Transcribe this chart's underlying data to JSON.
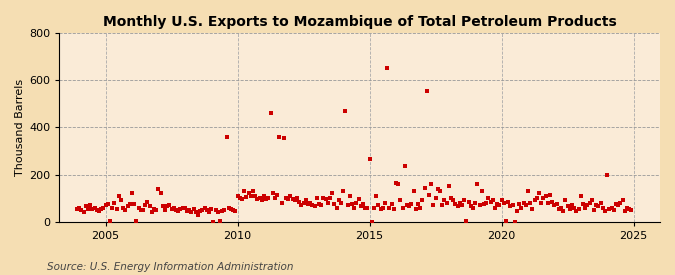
{
  "title": "Monthly U.S. Exports to Mozambique of Total Petroleum Products",
  "ylabel": "Thousand Barrels",
  "source": "Source: U.S. Energy Information Administration",
  "background_color": "#f5deb3",
  "plot_background_color": "#faebd7",
  "marker_color": "#cc0000",
  "grid_color_h": "#999999",
  "grid_color_v": "#aaaaaa",
  "xlim": [
    2003.25,
    2026.0
  ],
  "ylim": [
    0,
    800
  ],
  "yticks": [
    0,
    200,
    400,
    600,
    800
  ],
  "xticks": [
    2005,
    2010,
    2015,
    2020,
    2025
  ],
  "title_fontsize": 10,
  "ylabel_fontsize": 8,
  "tick_fontsize": 8,
  "source_fontsize": 7.5,
  "data": [
    [
      2003.917,
      55
    ],
    [
      2004.0,
      60
    ],
    [
      2004.083,
      50
    ],
    [
      2004.167,
      40
    ],
    [
      2004.25,
      65
    ],
    [
      2004.333,
      55
    ],
    [
      2004.417,
      70
    ],
    [
      2004.5,
      55
    ],
    [
      2004.583,
      60
    ],
    [
      2004.667,
      50
    ],
    [
      2004.75,
      45
    ],
    [
      2004.833,
      55
    ],
    [
      2004.917,
      60
    ],
    [
      2005.0,
      70
    ],
    [
      2005.083,
      75
    ],
    [
      2005.167,
      5
    ],
    [
      2005.25,
      60
    ],
    [
      2005.333,
      80
    ],
    [
      2005.417,
      55
    ],
    [
      2005.5,
      110
    ],
    [
      2005.583,
      90
    ],
    [
      2005.667,
      60
    ],
    [
      2005.75,
      50
    ],
    [
      2005.833,
      65
    ],
    [
      2005.917,
      75
    ],
    [
      2006.0,
      120
    ],
    [
      2006.083,
      75
    ],
    [
      2006.167,
      5
    ],
    [
      2006.25,
      60
    ],
    [
      2006.333,
      50
    ],
    [
      2006.417,
      50
    ],
    [
      2006.5,
      70
    ],
    [
      2006.583,
      85
    ],
    [
      2006.667,
      65
    ],
    [
      2006.75,
      40
    ],
    [
      2006.833,
      55
    ],
    [
      2006.917,
      50
    ],
    [
      2007.0,
      140
    ],
    [
      2007.083,
      120
    ],
    [
      2007.167,
      65
    ],
    [
      2007.25,
      50
    ],
    [
      2007.333,
      65
    ],
    [
      2007.417,
      70
    ],
    [
      2007.5,
      55
    ],
    [
      2007.583,
      60
    ],
    [
      2007.667,
      50
    ],
    [
      2007.75,
      45
    ],
    [
      2007.833,
      55
    ],
    [
      2007.917,
      60
    ],
    [
      2008.0,
      60
    ],
    [
      2008.083,
      45
    ],
    [
      2008.167,
      50
    ],
    [
      2008.25,
      40
    ],
    [
      2008.333,
      55
    ],
    [
      2008.417,
      40
    ],
    [
      2008.5,
      30
    ],
    [
      2008.583,
      45
    ],
    [
      2008.667,
      50
    ],
    [
      2008.75,
      60
    ],
    [
      2008.833,
      50
    ],
    [
      2008.917,
      40
    ],
    [
      2009.0,
      55
    ],
    [
      2009.083,
      0
    ],
    [
      2009.167,
      50
    ],
    [
      2009.25,
      40
    ],
    [
      2009.333,
      5
    ],
    [
      2009.417,
      45
    ],
    [
      2009.5,
      50
    ],
    [
      2009.583,
      360
    ],
    [
      2009.667,
      60
    ],
    [
      2009.75,
      55
    ],
    [
      2009.833,
      50
    ],
    [
      2009.917,
      45
    ],
    [
      2010.0,
      110
    ],
    [
      2010.083,
      100
    ],
    [
      2010.167,
      95
    ],
    [
      2010.25,
      130
    ],
    [
      2010.333,
      105
    ],
    [
      2010.417,
      120
    ],
    [
      2010.5,
      110
    ],
    [
      2010.583,
      130
    ],
    [
      2010.667,
      110
    ],
    [
      2010.75,
      95
    ],
    [
      2010.833,
      100
    ],
    [
      2010.917,
      90
    ],
    [
      2011.0,
      110
    ],
    [
      2011.083,
      95
    ],
    [
      2011.167,
      100
    ],
    [
      2011.25,
      460
    ],
    [
      2011.333,
      120
    ],
    [
      2011.417,
      100
    ],
    [
      2011.5,
      115
    ],
    [
      2011.583,
      360
    ],
    [
      2011.667,
      80
    ],
    [
      2011.75,
      355
    ],
    [
      2011.833,
      100
    ],
    [
      2011.917,
      95
    ],
    [
      2012.0,
      110
    ],
    [
      2012.083,
      95
    ],
    [
      2012.167,
      90
    ],
    [
      2012.25,
      100
    ],
    [
      2012.333,
      85
    ],
    [
      2012.417,
      70
    ],
    [
      2012.5,
      80
    ],
    [
      2012.583,
      90
    ],
    [
      2012.667,
      75
    ],
    [
      2012.75,
      80
    ],
    [
      2012.833,
      70
    ],
    [
      2012.917,
      65
    ],
    [
      2013.0,
      100
    ],
    [
      2013.083,
      75
    ],
    [
      2013.167,
      70
    ],
    [
      2013.25,
      100
    ],
    [
      2013.333,
      95
    ],
    [
      2013.417,
      80
    ],
    [
      2013.5,
      100
    ],
    [
      2013.583,
      120
    ],
    [
      2013.667,
      75
    ],
    [
      2013.75,
      60
    ],
    [
      2013.833,
      90
    ],
    [
      2013.917,
      80
    ],
    [
      2014.0,
      130
    ],
    [
      2014.083,
      470
    ],
    [
      2014.167,
      70
    ],
    [
      2014.25,
      110
    ],
    [
      2014.333,
      75
    ],
    [
      2014.417,
      60
    ],
    [
      2014.5,
      80
    ],
    [
      2014.583,
      95
    ],
    [
      2014.667,
      65
    ],
    [
      2014.75,
      75
    ],
    [
      2014.833,
      60
    ],
    [
      2014.917,
      60
    ],
    [
      2015.0,
      265
    ],
    [
      2015.083,
      0
    ],
    [
      2015.167,
      60
    ],
    [
      2015.25,
      110
    ],
    [
      2015.333,
      70
    ],
    [
      2015.417,
      55
    ],
    [
      2015.5,
      60
    ],
    [
      2015.583,
      80
    ],
    [
      2015.667,
      650
    ],
    [
      2015.75,
      60
    ],
    [
      2015.833,
      75
    ],
    [
      2015.917,
      55
    ],
    [
      2016.0,
      165
    ],
    [
      2016.083,
      160
    ],
    [
      2016.167,
      90
    ],
    [
      2016.25,
      60
    ],
    [
      2016.333,
      235
    ],
    [
      2016.417,
      70
    ],
    [
      2016.5,
      65
    ],
    [
      2016.583,
      75
    ],
    [
      2016.667,
      130
    ],
    [
      2016.75,
      55
    ],
    [
      2016.833,
      75
    ],
    [
      2016.917,
      60
    ],
    [
      2017.0,
      90
    ],
    [
      2017.083,
      145
    ],
    [
      2017.167,
      555
    ],
    [
      2017.25,
      115
    ],
    [
      2017.333,
      160
    ],
    [
      2017.417,
      70
    ],
    [
      2017.5,
      100
    ],
    [
      2017.583,
      140
    ],
    [
      2017.667,
      130
    ],
    [
      2017.75,
      70
    ],
    [
      2017.833,
      90
    ],
    [
      2017.917,
      80
    ],
    [
      2018.0,
      150
    ],
    [
      2018.083,
      100
    ],
    [
      2018.167,
      90
    ],
    [
      2018.25,
      75
    ],
    [
      2018.333,
      65
    ],
    [
      2018.417,
      80
    ],
    [
      2018.5,
      70
    ],
    [
      2018.583,
      90
    ],
    [
      2018.667,
      5
    ],
    [
      2018.75,
      85
    ],
    [
      2018.833,
      65
    ],
    [
      2018.917,
      60
    ],
    [
      2019.0,
      80
    ],
    [
      2019.083,
      160
    ],
    [
      2019.167,
      70
    ],
    [
      2019.25,
      130
    ],
    [
      2019.333,
      75
    ],
    [
      2019.417,
      80
    ],
    [
      2019.5,
      100
    ],
    [
      2019.583,
      85
    ],
    [
      2019.667,
      90
    ],
    [
      2019.75,
      60
    ],
    [
      2019.833,
      75
    ],
    [
      2019.917,
      70
    ],
    [
      2020.0,
      90
    ],
    [
      2020.083,
      80
    ],
    [
      2020.167,
      5
    ],
    [
      2020.25,
      85
    ],
    [
      2020.333,
      65
    ],
    [
      2020.417,
      70
    ],
    [
      2020.5,
      0
    ],
    [
      2020.583,
      45
    ],
    [
      2020.667,
      75
    ],
    [
      2020.75,
      60
    ],
    [
      2020.833,
      80
    ],
    [
      2020.917,
      70
    ],
    [
      2021.0,
      130
    ],
    [
      2021.083,
      80
    ],
    [
      2021.167,
      55
    ],
    [
      2021.25,
      90
    ],
    [
      2021.333,
      100
    ],
    [
      2021.417,
      120
    ],
    [
      2021.5,
      80
    ],
    [
      2021.583,
      100
    ],
    [
      2021.667,
      110
    ],
    [
      2021.75,
      80
    ],
    [
      2021.833,
      115
    ],
    [
      2021.917,
      85
    ],
    [
      2022.0,
      70
    ],
    [
      2022.083,
      75
    ],
    [
      2022.167,
      55
    ],
    [
      2022.25,
      60
    ],
    [
      2022.333,
      45
    ],
    [
      2022.417,
      90
    ],
    [
      2022.5,
      65
    ],
    [
      2022.583,
      55
    ],
    [
      2022.667,
      70
    ],
    [
      2022.75,
      60
    ],
    [
      2022.833,
      45
    ],
    [
      2022.917,
      55
    ],
    [
      2023.0,
      110
    ],
    [
      2023.083,
      75
    ],
    [
      2023.167,
      60
    ],
    [
      2023.25,
      70
    ],
    [
      2023.333,
      80
    ],
    [
      2023.417,
      90
    ],
    [
      2023.5,
      50
    ],
    [
      2023.583,
      70
    ],
    [
      2023.667,
      65
    ],
    [
      2023.75,
      80
    ],
    [
      2023.833,
      60
    ],
    [
      2023.917,
      45
    ],
    [
      2024.0,
      200
    ],
    [
      2024.083,
      55
    ],
    [
      2024.167,
      60
    ],
    [
      2024.25,
      50
    ],
    [
      2024.333,
      75
    ],
    [
      2024.417,
      70
    ],
    [
      2024.5,
      80
    ],
    [
      2024.583,
      90
    ],
    [
      2024.667,
      45
    ],
    [
      2024.75,
      60
    ],
    [
      2024.833,
      55
    ],
    [
      2024.917,
      50
    ]
  ]
}
